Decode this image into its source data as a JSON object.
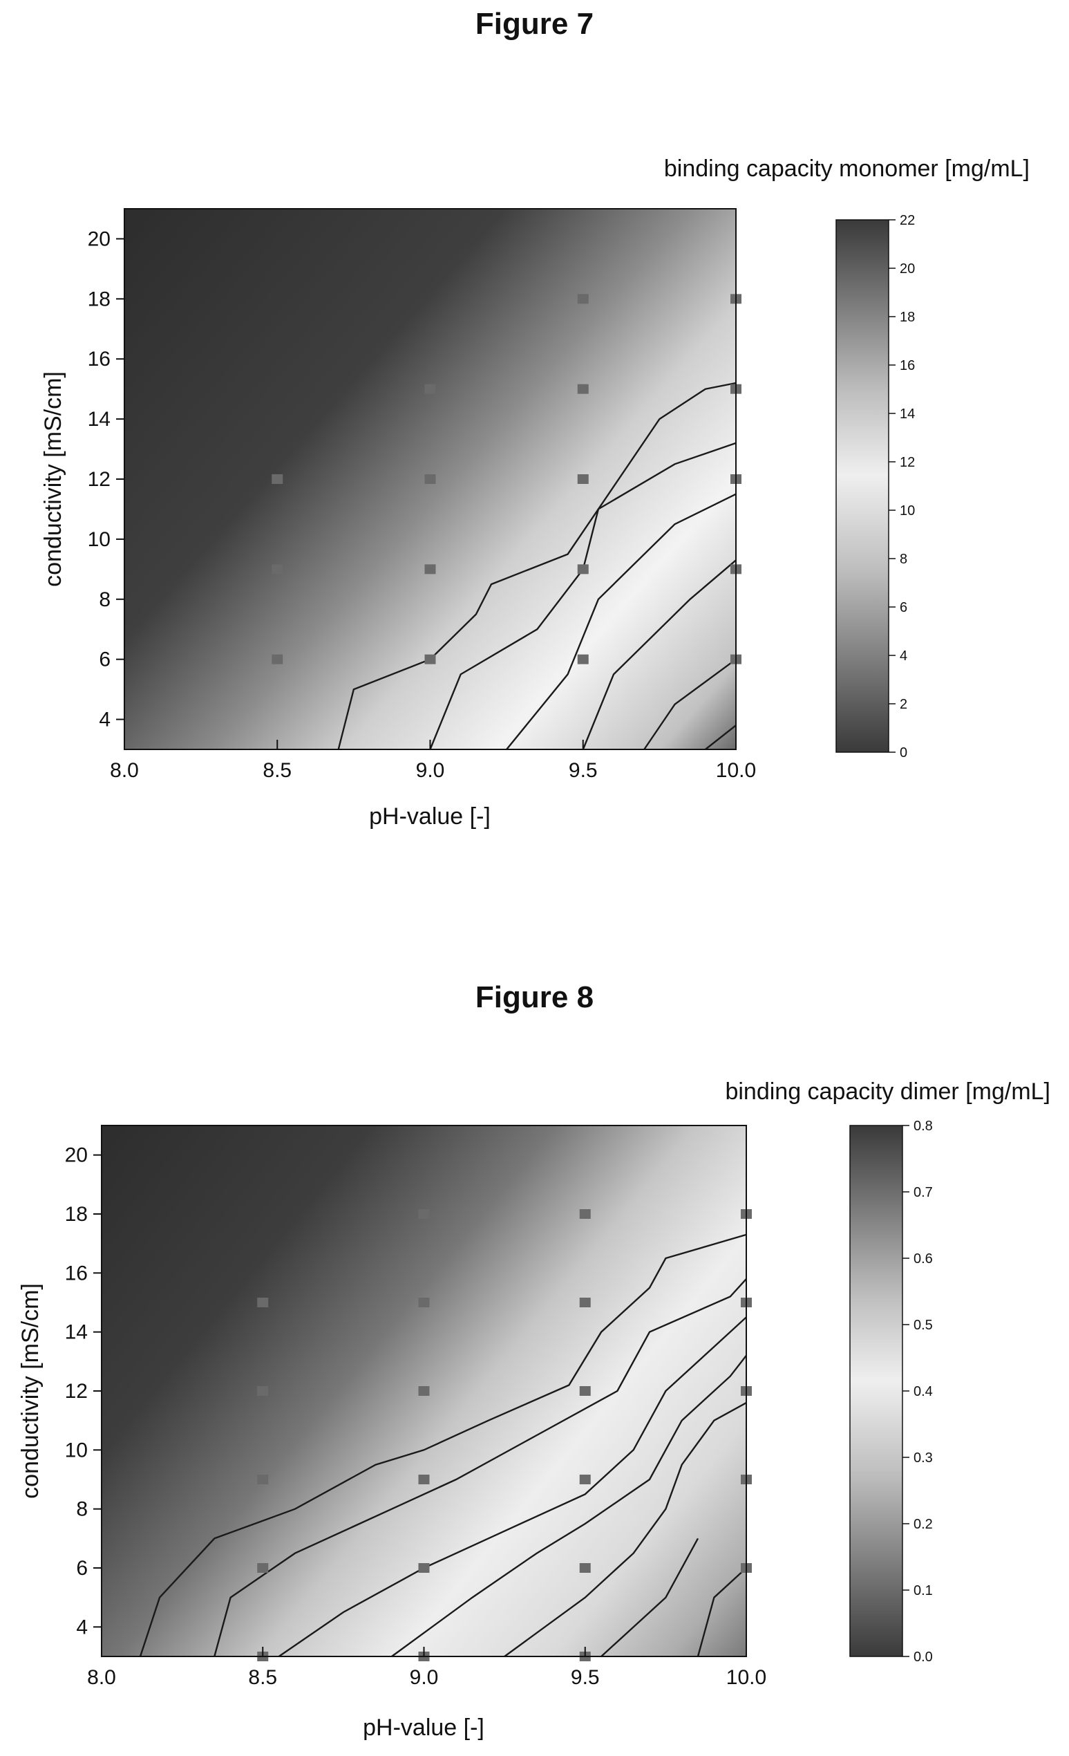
{
  "figures": [
    {
      "figure_title": "Figure 7",
      "colorbar_title": "binding capacity monomer [mg/mL]",
      "colorbar_ticks": [
        "0",
        "2",
        "4",
        "6",
        "8",
        "10",
        "12",
        "14",
        "16",
        "18",
        "20",
        "22"
      ],
      "colorbar_color_ramp": [
        "#3a3a3a",
        "#7c7c7c",
        "#bdbdbd",
        "#efefef",
        "#bdbdbd",
        "#7c7c7c",
        "#3a3a3a"
      ]
    },
    {
      "figure_title": "Figure 8",
      "colorbar_title": "binding capacity dimer [mg/mL]",
      "colorbar_ticks": [
        "0.0",
        "0.1",
        "0.2",
        "0.3",
        "0.4",
        "0.5",
        "0.6",
        "0.7",
        "0.8"
      ],
      "colorbar_color_ramp": [
        "#3a3a3a",
        "#7c7c7c",
        "#bdbdbd",
        "#efefef",
        "#bdbdbd",
        "#7c7c7c",
        "#3a3a3a"
      ]
    }
  ],
  "chart_data": [
    {
      "type": "heatmap",
      "title": "",
      "xlabel": "pH-value [-]",
      "ylabel": "conductivity [mS/cm]",
      "xlim": [
        8.0,
        10.0
      ],
      "ylim": [
        3,
        21
      ],
      "x_ticks": [
        "8.0",
        "8.5",
        "9.0",
        "9.5",
        "10.0"
      ],
      "y_ticks": [
        "4",
        "6",
        "8",
        "10",
        "12",
        "14",
        "16",
        "18",
        "20"
      ],
      "value_range": [
        0,
        22
      ],
      "sample_points": [
        {
          "x": 8.5,
          "y": 12
        },
        {
          "x": 8.5,
          "y": 9
        },
        {
          "x": 8.5,
          "y": 6
        },
        {
          "x": 9.0,
          "y": 15
        },
        {
          "x": 9.0,
          "y": 12
        },
        {
          "x": 9.0,
          "y": 9
        },
        {
          "x": 9.0,
          "y": 6
        },
        {
          "x": 9.5,
          "y": 18
        },
        {
          "x": 9.5,
          "y": 15
        },
        {
          "x": 9.5,
          "y": 12
        },
        {
          "x": 9.5,
          "y": 9
        },
        {
          "x": 9.5,
          "y": 6
        },
        {
          "x": 10.0,
          "y": 18
        },
        {
          "x": 10.0,
          "y": 15
        },
        {
          "x": 10.0,
          "y": 12
        },
        {
          "x": 10.0,
          "y": 9
        },
        {
          "x": 10.0,
          "y": 6
        }
      ],
      "contour_lines": [
        [
          [
            8.7,
            3
          ],
          [
            8.75,
            5
          ],
          [
            9.0,
            6
          ],
          [
            9.15,
            7.5
          ],
          [
            9.2,
            8.5
          ],
          [
            9.45,
            9.5
          ],
          [
            9.55,
            11
          ],
          [
            9.75,
            14
          ],
          [
            9.9,
            15
          ],
          [
            10.0,
            15.2
          ]
        ],
        [
          [
            9.0,
            3
          ],
          [
            9.1,
            5.5
          ],
          [
            9.35,
            7
          ],
          [
            9.5,
            9
          ],
          [
            9.55,
            11
          ],
          [
            9.8,
            12.5
          ],
          [
            10.0,
            13.2
          ]
        ],
        [
          [
            9.25,
            3
          ],
          [
            9.45,
            5.5
          ],
          [
            9.55,
            8
          ],
          [
            9.8,
            10.5
          ],
          [
            10.0,
            11.5
          ]
        ],
        [
          [
            9.5,
            3
          ],
          [
            9.6,
            5.5
          ],
          [
            9.85,
            8
          ],
          [
            10.0,
            9.3
          ]
        ],
        [
          [
            9.7,
            3
          ],
          [
            9.8,
            4.5
          ],
          [
            10.0,
            6
          ]
        ],
        [
          [
            9.9,
            3
          ],
          [
            10.0,
            3.8
          ]
        ]
      ]
    },
    {
      "type": "heatmap",
      "title": "",
      "xlabel": "pH-value [-]",
      "ylabel": "conductivity [mS/cm]",
      "xlim": [
        8.0,
        10.0
      ],
      "ylim": [
        3,
        21
      ],
      "x_ticks": [
        "8.0",
        "8.5",
        "9.0",
        "9.5",
        "10.0"
      ],
      "y_ticks": [
        "4",
        "6",
        "8",
        "10",
        "12",
        "14",
        "16",
        "18",
        "20"
      ],
      "value_range": [
        0.0,
        0.8
      ],
      "sample_points": [
        {
          "x": 8.5,
          "y": 15
        },
        {
          "x": 8.5,
          "y": 12
        },
        {
          "x": 8.5,
          "y": 9
        },
        {
          "x": 8.5,
          "y": 6
        },
        {
          "x": 8.5,
          "y": 3
        },
        {
          "x": 9.0,
          "y": 18
        },
        {
          "x": 9.0,
          "y": 15
        },
        {
          "x": 9.0,
          "y": 12
        },
        {
          "x": 9.0,
          "y": 9
        },
        {
          "x": 9.0,
          "y": 6
        },
        {
          "x": 9.0,
          "y": 3
        },
        {
          "x": 9.5,
          "y": 18
        },
        {
          "x": 9.5,
          "y": 15
        },
        {
          "x": 9.5,
          "y": 12
        },
        {
          "x": 9.5,
          "y": 9
        },
        {
          "x": 9.5,
          "y": 6
        },
        {
          "x": 9.5,
          "y": 3
        },
        {
          "x": 10.0,
          "y": 18
        },
        {
          "x": 10.0,
          "y": 15
        },
        {
          "x": 10.0,
          "y": 12
        },
        {
          "x": 10.0,
          "y": 9
        },
        {
          "x": 10.0,
          "y": 6
        }
      ],
      "contour_lines": [
        [
          [
            8.12,
            3
          ],
          [
            8.18,
            5
          ],
          [
            8.35,
            7
          ],
          [
            8.6,
            8
          ],
          [
            8.85,
            9.5
          ],
          [
            9.0,
            10
          ],
          [
            9.2,
            11
          ],
          [
            9.45,
            12.2
          ],
          [
            9.55,
            14
          ],
          [
            9.7,
            15.5
          ],
          [
            9.75,
            16.5
          ],
          [
            10.0,
            17.3
          ]
        ],
        [
          [
            8.35,
            3
          ],
          [
            8.4,
            5
          ],
          [
            8.6,
            6.5
          ],
          [
            8.9,
            8
          ],
          [
            9.1,
            9
          ],
          [
            9.35,
            10.5
          ],
          [
            9.6,
            12
          ],
          [
            9.7,
            14
          ],
          [
            9.95,
            15.2
          ],
          [
            10.0,
            15.8
          ]
        ],
        [
          [
            8.55,
            3
          ],
          [
            8.75,
            4.5
          ],
          [
            9.0,
            6
          ],
          [
            9.2,
            7
          ],
          [
            9.5,
            8.5
          ],
          [
            9.65,
            10
          ],
          [
            9.75,
            12
          ],
          [
            9.9,
            13.5
          ],
          [
            10.0,
            14.5
          ]
        ],
        [
          [
            8.9,
            3
          ],
          [
            9.15,
            5
          ],
          [
            9.35,
            6.5
          ],
          [
            9.5,
            7.5
          ],
          [
            9.7,
            9
          ],
          [
            9.8,
            11
          ],
          [
            9.95,
            12.5
          ],
          [
            10.0,
            13.2
          ]
        ],
        [
          [
            9.25,
            3
          ],
          [
            9.5,
            5
          ],
          [
            9.65,
            6.5
          ],
          [
            9.75,
            8
          ],
          [
            9.8,
            9.5
          ],
          [
            9.9,
            11
          ],
          [
            10.0,
            11.6
          ]
        ],
        [
          [
            9.55,
            3
          ],
          [
            9.75,
            5
          ],
          [
            9.85,
            7
          ]
        ],
        [
          [
            9.85,
            3
          ],
          [
            9.9,
            5
          ],
          [
            10.0,
            6
          ]
        ]
      ]
    }
  ]
}
